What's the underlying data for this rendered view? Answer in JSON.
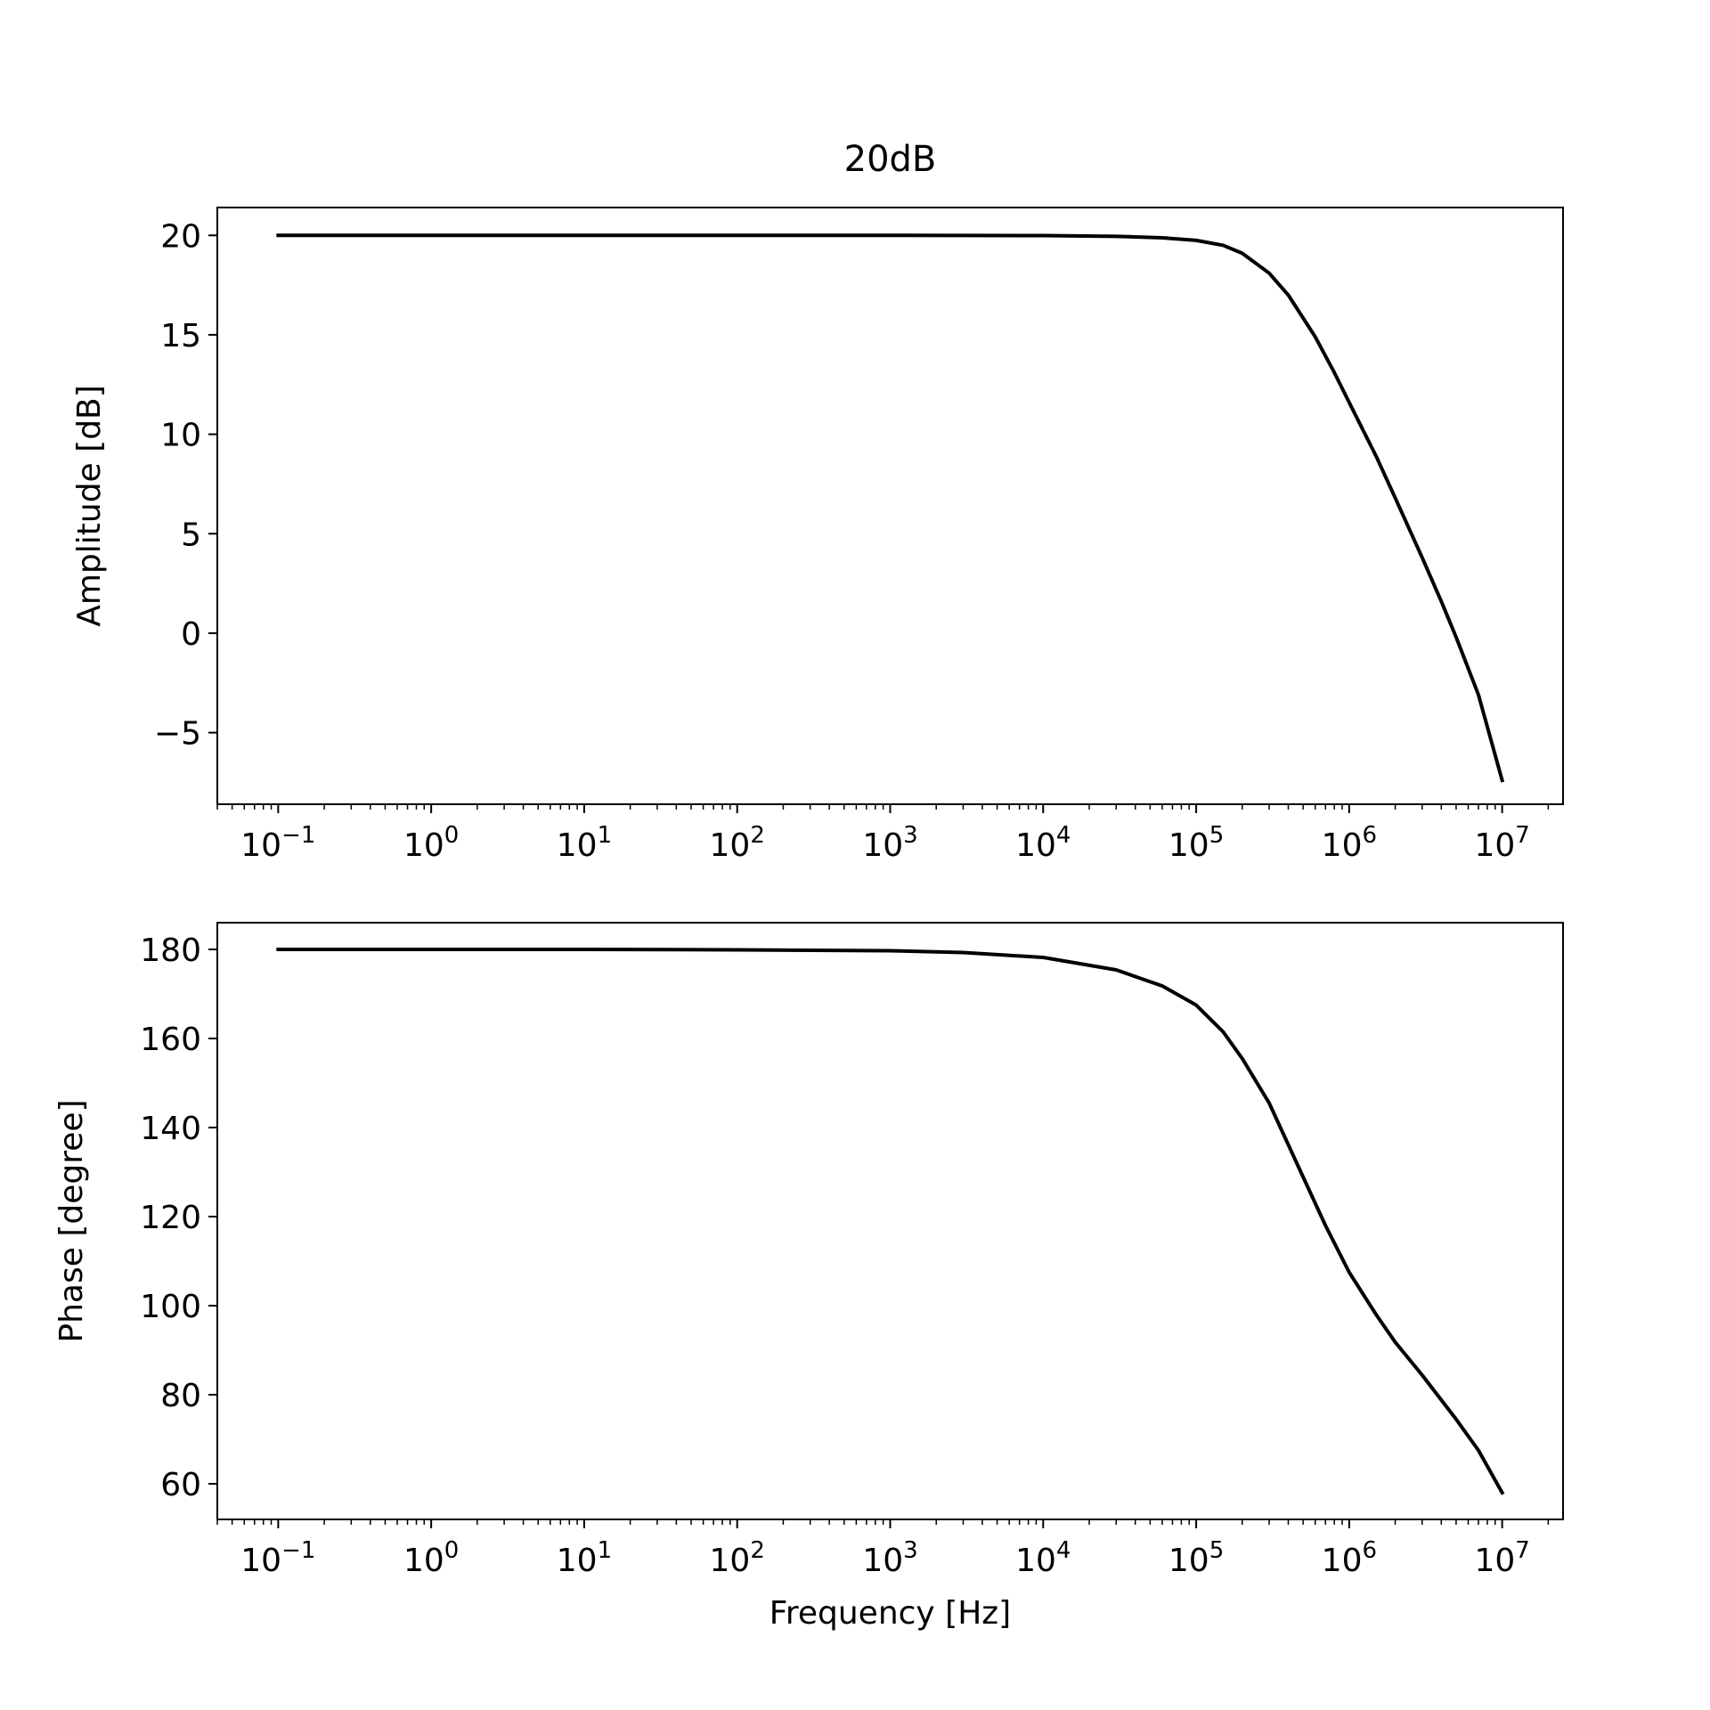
{
  "chart_data": [
    {
      "type": "line",
      "title": "20dB",
      "xlabel": "",
      "ylabel": "Amplitude [dB]",
      "xscale": "log",
      "xlim": [
        0.04,
        25000000
      ],
      "ylim": [
        -8.6,
        21.4
      ],
      "grid": false,
      "line_color": "#000000",
      "xticks": [
        {
          "base": "10",
          "exp": "−1"
        },
        {
          "base": "10",
          "exp": "0"
        },
        {
          "base": "10",
          "exp": "1"
        },
        {
          "base": "10",
          "exp": "2"
        },
        {
          "base": "10",
          "exp": "3"
        },
        {
          "base": "10",
          "exp": "4"
        },
        {
          "base": "10",
          "exp": "5"
        },
        {
          "base": "10",
          "exp": "6"
        },
        {
          "base": "10",
          "exp": "7"
        }
      ],
      "yticks": [
        20,
        15,
        10,
        5,
        0,
        -5
      ],
      "ytick_labels": [
        "20",
        "15",
        "10",
        "5",
        "0",
        "−5"
      ],
      "series": [
        {
          "x": [
            0.1,
            1,
            10,
            100,
            1000,
            10000,
            30000,
            60000,
            100000,
            150000,
            200000,
            300000,
            400000,
            600000,
            800000,
            1000000,
            1500000,
            2000000,
            3000000,
            4000000,
            5000000,
            7000000,
            10000000
          ],
          "y": [
            20,
            20,
            20,
            20,
            20,
            19.99,
            19.95,
            19.88,
            19.75,
            19.5,
            19.1,
            18.1,
            17.0,
            14.9,
            13.1,
            11.6,
            8.9,
            6.8,
            3.8,
            1.6,
            -0.2,
            -3.1,
            -7.4
          ]
        }
      ]
    },
    {
      "type": "line",
      "title": "",
      "xlabel": "Frequency [Hz]",
      "ylabel": "Phase [degree]",
      "xscale": "log",
      "xlim": [
        0.04,
        25000000
      ],
      "ylim": [
        52,
        186
      ],
      "grid": false,
      "line_color": "#000000",
      "xticks": [
        {
          "base": "10",
          "exp": "−1"
        },
        {
          "base": "10",
          "exp": "0"
        },
        {
          "base": "10",
          "exp": "1"
        },
        {
          "base": "10",
          "exp": "2"
        },
        {
          "base": "10",
          "exp": "3"
        },
        {
          "base": "10",
          "exp": "4"
        },
        {
          "base": "10",
          "exp": "5"
        },
        {
          "base": "10",
          "exp": "6"
        },
        {
          "base": "10",
          "exp": "7"
        }
      ],
      "yticks": [
        180,
        160,
        140,
        120,
        100,
        80,
        60
      ],
      "ytick_labels": [
        "180",
        "160",
        "140",
        "120",
        "100",
        "80",
        "60"
      ],
      "series": [
        {
          "x": [
            0.1,
            1,
            10,
            100,
            1000,
            3000,
            10000,
            30000,
            60000,
            100000,
            150000,
            200000,
            300000,
            500000,
            700000,
            1000000,
            1500000,
            2000000,
            3000000,
            5000000,
            7000000,
            10000000
          ],
          "y": [
            180,
            180,
            180,
            179.9,
            179.7,
            179.3,
            178.2,
            175.4,
            171.8,
            167.5,
            161.5,
            155.5,
            145.5,
            128.9,
            118.0,
            107.5,
            98.0,
            91.8,
            84.4,
            74.5,
            67.5,
            58.0
          ]
        }
      ]
    }
  ]
}
